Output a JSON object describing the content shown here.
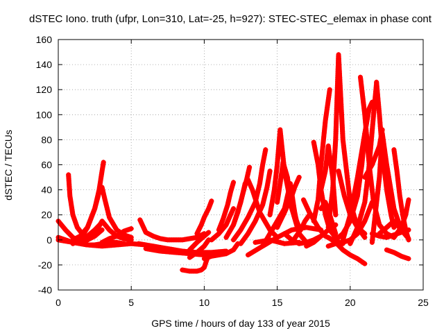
{
  "chart_data": {
    "type": "scatter",
    "title": "dSTEC Iono. truth (ufpr, Lon=310, Lat=-25, h=927): STEC-STEC_elemax in phase cont",
    "xlabel": "GPS time / hours of day 133 of year 2015",
    "ylabel": "dSTEC  / TECUs",
    "xlim": [
      0,
      25
    ],
    "ylim": [
      -40,
      160
    ],
    "xticks": [
      "0",
      "5",
      "10",
      "15",
      "20",
      "25"
    ],
    "yticks": [
      "-40",
      "-20",
      "0",
      "20",
      "40",
      "60",
      "80",
      "100",
      "120",
      "140",
      "160"
    ],
    "grid": true,
    "marker": "plus",
    "color": "#ff0000",
    "series": [
      {
        "x": [
          0.0,
          0.5,
          1.0,
          1.5,
          2.0,
          2.5,
          3.0
        ],
        "y": [
          15,
          8,
          2,
          -1,
          0,
          3,
          8
        ]
      },
      {
        "x": [
          0.0,
          0.5,
          1.0,
          1.5,
          2.0,
          2.5,
          3.0,
          3.5,
          4.0,
          4.5
        ],
        "y": [
          2,
          0,
          -2,
          -3,
          -4,
          -4,
          -3,
          -2,
          -2,
          -3
        ]
      },
      {
        "x": [
          0.0,
          1.0,
          2.0,
          3.0,
          4.0,
          5.0,
          6.0
        ],
        "y": [
          0,
          -2,
          -4,
          -5,
          -4,
          -3,
          -4
        ]
      },
      {
        "x": [
          0.7,
          0.8,
          1.0,
          1.3,
          1.7,
          2.0
        ],
        "y": [
          52,
          35,
          20,
          10,
          4,
          0
        ]
      },
      {
        "x": [
          1.0,
          1.5,
          2.0,
          2.5,
          2.8,
          3.0,
          3.2,
          3.5,
          4.0,
          4.5,
          5.0
        ],
        "y": [
          0,
          3,
          10,
          25,
          38,
          42,
          32,
          18,
          8,
          4,
          2
        ]
      },
      {
        "x": [
          1.5,
          2.0,
          2.5,
          2.8,
          3.0,
          3.1
        ],
        "y": [
          0,
          10,
          25,
          40,
          55,
          62
        ]
      },
      {
        "x": [
          2.0,
          2.5,
          3.0,
          3.5,
          4.0,
          4.5,
          5.0
        ],
        "y": [
          0,
          5,
          15,
          8,
          3,
          1,
          0
        ]
      },
      {
        "x": [
          1.0,
          2.0,
          2.5,
          3.0
        ],
        "y": [
          -3,
          3,
          8,
          14
        ]
      },
      {
        "x": [
          3.0,
          3.5,
          4.0,
          4.5,
          5.0
        ],
        "y": [
          -2,
          1,
          3,
          7,
          9
        ]
      },
      {
        "x": [
          5.6,
          6.0,
          6.5,
          7.0,
          7.5,
          8.0,
          8.5,
          9.0,
          9.5,
          10.0
        ],
        "y": [
          16,
          6,
          3,
          1,
          0,
          0,
          0,
          1,
          2,
          5
        ]
      },
      {
        "x": [
          5.5,
          6.5,
          7.5,
          8.5,
          9.5,
          10.5,
          11.5
        ],
        "y": [
          -3,
          -5,
          -7,
          -9,
          -10,
          -10,
          -9
        ]
      },
      {
        "x": [
          6.0,
          7.0,
          8.0,
          9.0,
          10.0,
          11.0
        ],
        "y": [
          -7,
          -9,
          -10,
          -11,
          -12,
          -11
        ]
      },
      {
        "x": [
          8.5,
          9.0,
          9.5,
          9.8,
          10.0,
          10.2
        ],
        "y": [
          -24,
          -25,
          -25,
          -24,
          -22,
          -15
        ]
      },
      {
        "x": [
          9.0,
          9.5,
          10.0,
          10.3
        ],
        "y": [
          -14,
          -10,
          -5,
          0
        ]
      },
      {
        "x": [
          9.0,
          9.5,
          10.0,
          10.3
        ],
        "y": [
          -8,
          -2,
          3,
          6
        ]
      },
      {
        "x": [
          9.5,
          9.8,
          10.0,
          10.3,
          10.5
        ],
        "y": [
          5,
          12,
          18,
          25,
          31
        ]
      },
      {
        "x": [
          10.0,
          10.5,
          11.0,
          11.5,
          12.0,
          12.3
        ],
        "y": [
          -15,
          -13,
          -12,
          -11,
          -8,
          -3
        ]
      },
      {
        "x": [
          10.5,
          11.0,
          11.5,
          11.8,
          12.0
        ],
        "y": [
          0,
          5,
          12,
          20,
          25
        ]
      },
      {
        "x": [
          11.0,
          11.3,
          11.6,
          11.8,
          12.0
        ],
        "y": [
          8,
          17,
          28,
          38,
          46
        ]
      },
      {
        "x": [
          11.5,
          12.0,
          12.5,
          12.8,
          13.0,
          13.3,
          13.8,
          14.5,
          15.0
        ],
        "y": [
          2,
          12,
          30,
          45,
          48,
          40,
          22,
          8,
          2
        ]
      },
      {
        "x": [
          12.0,
          12.3,
          12.6,
          12.9,
          13.1
        ],
        "y": [
          12,
          22,
          35,
          48,
          58
        ]
      },
      {
        "x": [
          12.0,
          12.5,
          13.0,
          13.5,
          13.8,
          14.0,
          14.2
        ],
        "y": [
          0,
          8,
          18,
          30,
          45,
          60,
          72
        ]
      },
      {
        "x": [
          12.5,
          13.0,
          13.5,
          14.0,
          14.3,
          14.5
        ],
        "y": [
          -3,
          5,
          15,
          28,
          42,
          55
        ]
      },
      {
        "x": [
          13.0,
          14.0,
          15.0,
          16.0,
          17.0,
          18.0
        ],
        "y": [
          -12,
          -5,
          2,
          8,
          10,
          8
        ]
      },
      {
        "x": [
          13.5,
          14.5,
          15.5,
          16.5
        ],
        "y": [
          -2,
          0,
          -3,
          -2
        ]
      },
      {
        "x": [
          14.0,
          14.5,
          15.0,
          15.5,
          16.0
        ],
        "y": [
          -5,
          5,
          15,
          25,
          38
        ]
      },
      {
        "x": [
          14.5,
          14.8,
          15.0,
          15.2,
          15.5,
          16.0,
          16.5
        ],
        "y": [
          20,
          40,
          60,
          88,
          55,
          25,
          10
        ]
      },
      {
        "x": [
          15.0,
          15.2,
          15.4,
          15.7,
          16.0,
          16.5,
          17.0
        ],
        "y": [
          30,
          45,
          62,
          50,
          25,
          5,
          -2
        ]
      },
      {
        "x": [
          15.5,
          15.7,
          15.9,
          16.2,
          16.5
        ],
        "y": [
          25,
          35,
          45,
          22,
          5
        ]
      },
      {
        "x": [
          15.0,
          15.5,
          16.0,
          16.2,
          16.5
        ],
        "y": [
          10,
          22,
          35,
          42,
          50
        ]
      },
      {
        "x": [
          15.5,
          16.0,
          16.5,
          17.0,
          17.5,
          18.0
        ],
        "y": [
          5,
          0,
          -3,
          -2,
          0,
          3
        ]
      },
      {
        "x": [
          16.0,
          16.3,
          16.6,
          16.9,
          17.2
        ],
        "y": [
          -2,
          3,
          8,
          15,
          20
        ]
      },
      {
        "x": [
          16.8,
          17.2,
          17.8,
          18.3,
          18.8,
          19.5
        ],
        "y": [
          32,
          22,
          10,
          3,
          0,
          -3
        ]
      },
      {
        "x": [
          17.0,
          17.5,
          18.0,
          18.5,
          19.0
        ],
        "y": [
          -5,
          -2,
          3,
          8,
          12
        ]
      },
      {
        "x": [
          17.5,
          17.8,
          18.0,
          18.3,
          18.6,
          19.0
        ],
        "y": [
          78,
          60,
          40,
          20,
          8,
          2
        ]
      },
      {
        "x": [
          17.5,
          17.8,
          18.0,
          18.3,
          18.6
        ],
        "y": [
          15,
          32,
          60,
          95,
          120
        ]
      },
      {
        "x": [
          18.0,
          18.3,
          18.5,
          18.8,
          19.0
        ],
        "y": [
          40,
          55,
          75,
          50,
          20
        ]
      },
      {
        "x": [
          18.0,
          18.3,
          18.6,
          19.0
        ],
        "y": [
          25,
          30,
          20,
          5
        ]
      },
      {
        "x": [
          18.5,
          18.8,
          19.0,
          19.2,
          19.5,
          20.0,
          20.5,
          21.0
        ],
        "y": [
          10,
          40,
          80,
          148,
          80,
          30,
          10,
          2
        ]
      },
      {
        "x": [
          19.2,
          19.6,
          20.0,
          20.5,
          21.0
        ],
        "y": [
          55,
          35,
          20,
          10,
          5
        ]
      },
      {
        "x": [
          18.5,
          19.0,
          19.5,
          20.0,
          20.5,
          21.0
        ],
        "y": [
          2,
          -2,
          -8,
          -12,
          -15,
          -19
        ]
      },
      {
        "x": [
          18.5,
          19.0,
          19.5,
          20.0,
          20.5,
          21.0,
          21.5
        ],
        "y": [
          -5,
          -3,
          -2,
          0,
          5,
          15,
          30
        ]
      },
      {
        "x": [
          19.0,
          19.5,
          20.0,
          20.5,
          20.8,
          21.0
        ],
        "y": [
          0,
          5,
          15,
          35,
          60,
          85
        ]
      },
      {
        "x": [
          20.7,
          21.0,
          21.3,
          21.6,
          22.0,
          22.5,
          23.0
        ],
        "y": [
          130,
          100,
          60,
          30,
          12,
          5,
          2
        ]
      },
      {
        "x": [
          19.5,
          20.0,
          20.5,
          21.0,
          21.3,
          21.5
        ],
        "y": [
          0,
          20,
          50,
          85,
          105,
          110
        ]
      },
      {
        "x": [
          20.0,
          20.5,
          21.0,
          21.3,
          21.6,
          21.8
        ],
        "y": [
          -3,
          10,
          30,
          60,
          100,
          125
        ]
      },
      {
        "x": [
          21.8,
          22.0,
          22.2,
          22.5,
          22.8,
          23.0
        ],
        "y": [
          126,
          100,
          70,
          40,
          20,
          10
        ]
      },
      {
        "x": [
          21.0,
          21.5,
          22.0,
          22.2
        ],
        "y": [
          50,
          60,
          75,
          88
        ]
      },
      {
        "x": [
          21.5,
          22.0,
          22.2,
          22.5,
          23.0,
          23.5
        ],
        "y": [
          -2,
          50,
          85,
          60,
          25,
          8
        ]
      },
      {
        "x": [
          22.0,
          22.5,
          23.0,
          23.5,
          24.0
        ],
        "y": [
          5,
          10,
          15,
          8,
          1
        ]
      },
      {
        "x": [
          23.0,
          23.2,
          23.4,
          23.6,
          23.8,
          24.0
        ],
        "y": [
          72,
          55,
          35,
          20,
          8,
          0
        ]
      },
      {
        "x": [
          22.5,
          23.0,
          23.5,
          24.0
        ],
        "y": [
          -8,
          -10,
          -13,
          -15
        ]
      },
      {
        "x": [
          23.0,
          23.5,
          23.8,
          24.0
        ],
        "y": [
          2,
          10,
          20,
          32
        ]
      },
      {
        "x": [
          21.5,
          22.0,
          22.5,
          23.0,
          23.5,
          24.0
        ],
        "y": [
          5,
          3,
          2,
          4,
          6,
          8
        ]
      }
    ]
  }
}
